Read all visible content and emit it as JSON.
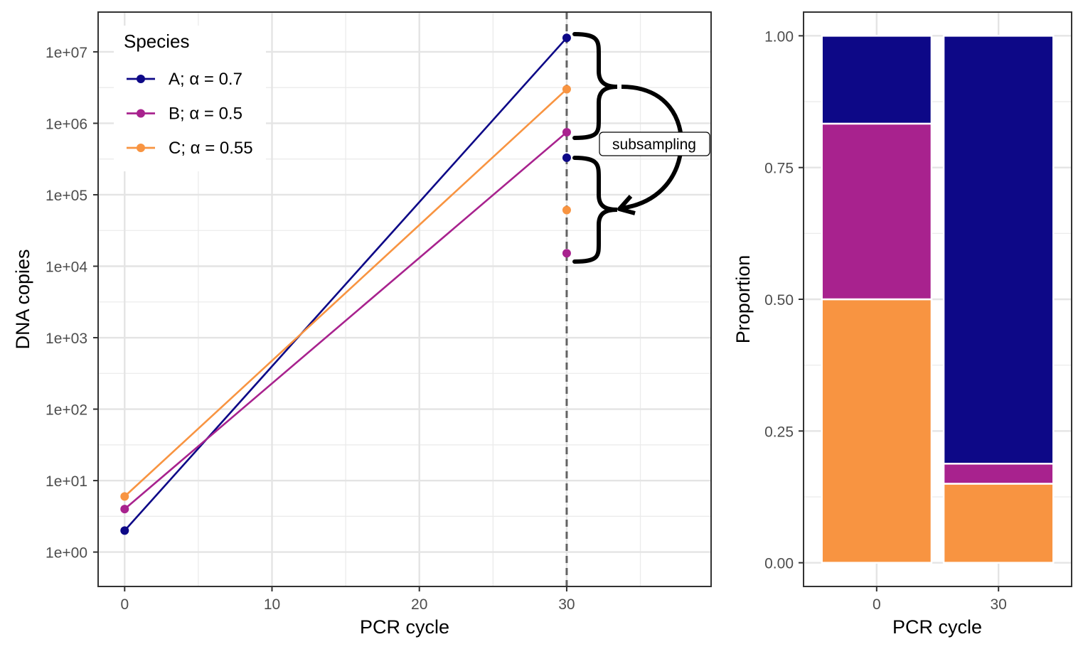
{
  "chart_data": [
    {
      "type": "line",
      "xlabel": "PCR cycle",
      "ylabel": "DNA copies",
      "y_scale": "log10",
      "xlim": [
        -1.8,
        39.8
      ],
      "ylim": [
        0.33,
        36000000
      ],
      "x_ticks": [
        0,
        10,
        20,
        30
      ],
      "x_tick_labels": [
        "0",
        "10",
        "20",
        "30"
      ],
      "y_ticks": [
        1,
        10,
        100,
        1000,
        10000,
        100000,
        1000000,
        10000000
      ],
      "y_tick_labels": [
        "1e+00",
        "1e+01",
        "1e+02",
        "1e+03",
        "1e+04",
        "1e+05",
        "1e+06",
        "1e+07"
      ],
      "grid": true,
      "vline": {
        "x": 30,
        "style": "dashed",
        "color": "#636363"
      },
      "legend": {
        "title": "Species",
        "position": "top-left"
      },
      "series": [
        {
          "name": "A; α = 0.7",
          "color": "#0D0887",
          "x": [
            0,
            30
          ],
          "y": [
            2,
            15700000
          ],
          "subsampled": 330000
        },
        {
          "name": "B; α = 0.5",
          "color": "#A8228E",
          "x": [
            0,
            30
          ],
          "y": [
            4,
            750000
          ],
          "subsampled": 15200
        },
        {
          "name": "C; α = 0.55",
          "color": "#F89441",
          "x": [
            0,
            30
          ],
          "y": [
            6,
            3000000
          ],
          "subsampled": 61000
        }
      ],
      "annotations": [
        {
          "text": "subsampling"
        }
      ]
    },
    {
      "type": "bar",
      "stacked": true,
      "xlabel": "PCR cycle",
      "ylabel": "Proportion",
      "categories": [
        "0",
        "30"
      ],
      "ylim": [
        -0.045,
        1.045
      ],
      "y_ticks": [
        0,
        0.25,
        0.5,
        0.75,
        1
      ],
      "y_tick_labels": [
        "0.00",
        "0.25",
        "0.50",
        "0.75",
        "1.00"
      ],
      "grid": true,
      "series": [
        {
          "species": "C",
          "color": "#F89441",
          "values": [
            0.5,
            0.15
          ]
        },
        {
          "species": "B",
          "color": "#A8228E",
          "values": [
            0.3333,
            0.038
          ]
        },
        {
          "species": "A",
          "color": "#0D0887",
          "values": [
            0.1667,
            0.812
          ]
        }
      ]
    }
  ]
}
